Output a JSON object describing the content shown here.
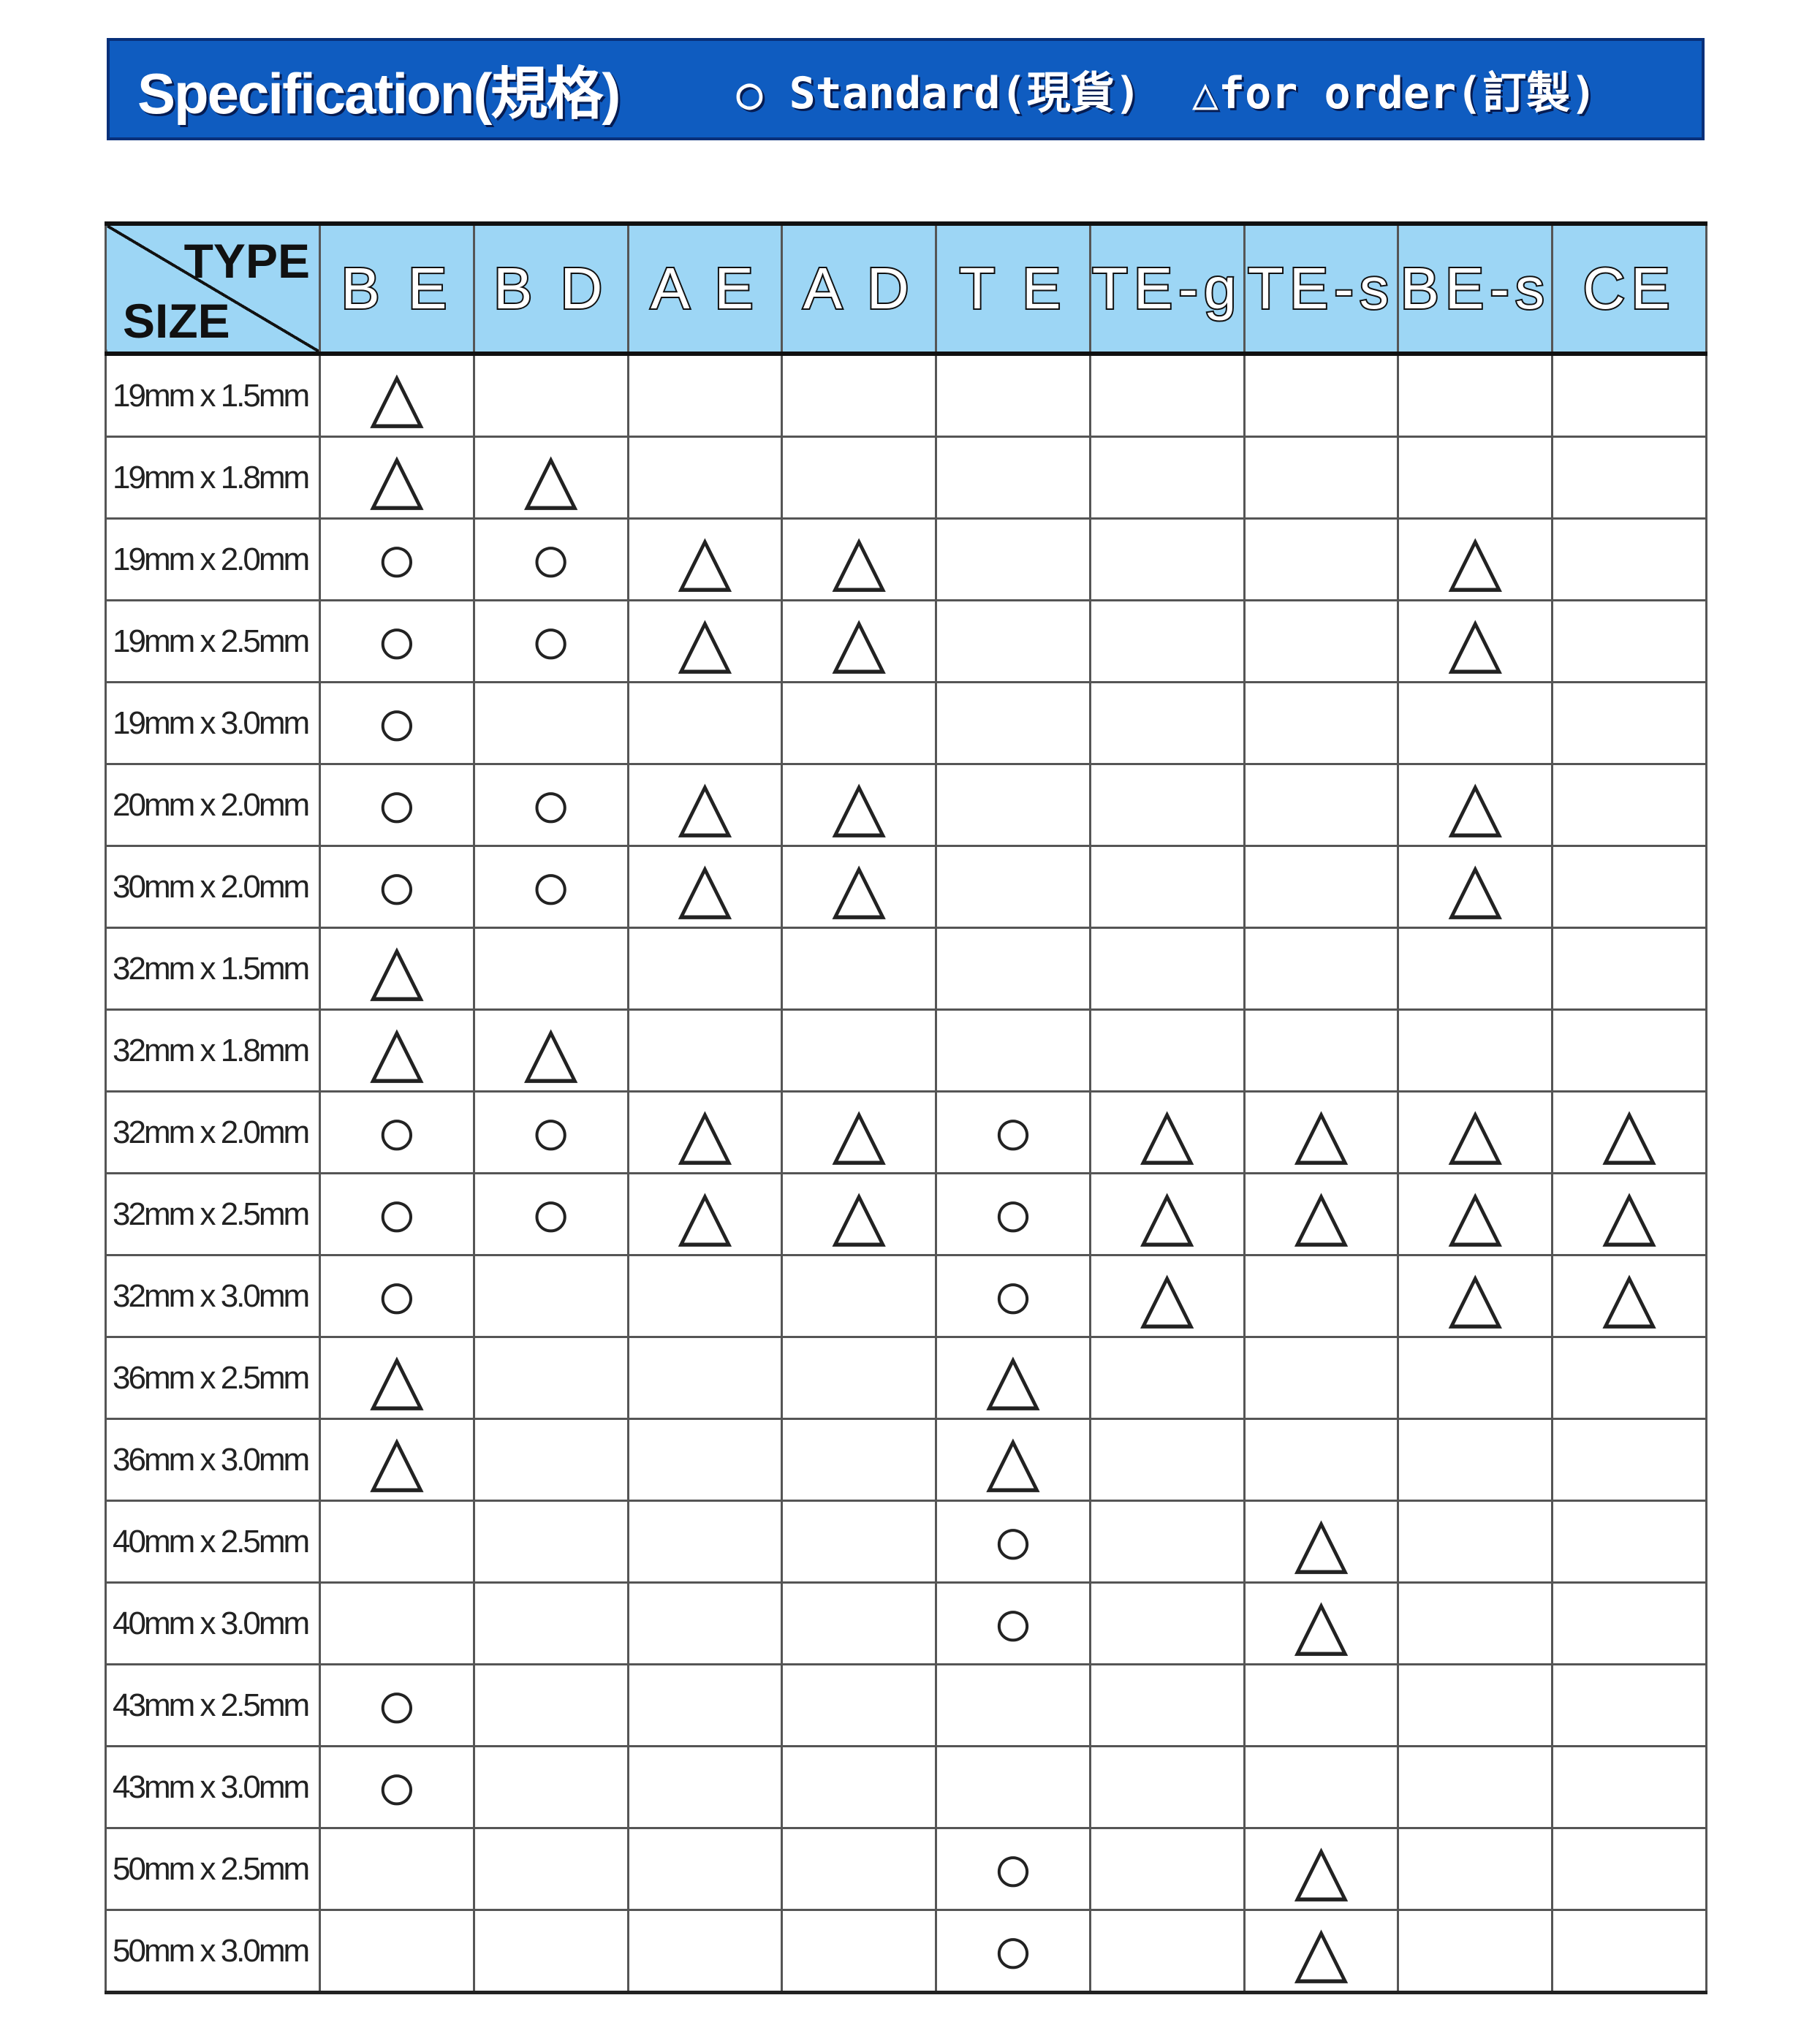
{
  "banner": {
    "title": "Specification(規格)",
    "legend_standard": "○ Standard(現貨)",
    "legend_order": "△for order(訂製)",
    "color": "#0f5cc0"
  },
  "table": {
    "corner_type": "TYPE",
    "corner_size": "SIZE",
    "header_color": "#9dd6f5",
    "columns": [
      "B E",
      "B D",
      "A E",
      "A D",
      "T E",
      "TE-g",
      "TE-s",
      "BE-s",
      "CE"
    ],
    "rows": [
      {
        "size": "19mm x 1.5mm",
        "marks": [
          "△",
          "",
          "",
          "",
          "",
          "",
          "",
          "",
          ""
        ]
      },
      {
        "size": "19mm x 1.8mm",
        "marks": [
          "△",
          "△",
          "",
          "",
          "",
          "",
          "",
          "",
          ""
        ]
      },
      {
        "size": "19mm x 2.0mm",
        "marks": [
          "○",
          "○",
          "△",
          "△",
          "",
          "",
          "",
          "△",
          ""
        ]
      },
      {
        "size": "19mm x 2.5mm",
        "marks": [
          "○",
          "○",
          "△",
          "△",
          "",
          "",
          "",
          "△",
          ""
        ]
      },
      {
        "size": "19mm x 3.0mm",
        "marks": [
          "○",
          "",
          "",
          "",
          "",
          "",
          "",
          "",
          ""
        ]
      },
      {
        "size": "20mm x 2.0mm",
        "marks": [
          "○",
          "○",
          "△",
          "△",
          "",
          "",
          "",
          "△",
          ""
        ]
      },
      {
        "size": "30mm x 2.0mm",
        "marks": [
          "○",
          "○",
          "△",
          "△",
          "",
          "",
          "",
          "△",
          ""
        ]
      },
      {
        "size": "32mm x 1.5mm",
        "marks": [
          "△",
          "",
          "",
          "",
          "",
          "",
          "",
          "",
          ""
        ]
      },
      {
        "size": "32mm x 1.8mm",
        "marks": [
          "△",
          "△",
          "",
          "",
          "",
          "",
          "",
          "",
          ""
        ]
      },
      {
        "size": "32mm x 2.0mm",
        "marks": [
          "○",
          "○",
          "△",
          "△",
          "○",
          "△",
          "△",
          "△",
          "△"
        ]
      },
      {
        "size": "32mm x 2.5mm",
        "marks": [
          "○",
          "○",
          "△",
          "△",
          "○",
          "△",
          "△",
          "△",
          "△"
        ]
      },
      {
        "size": "32mm x 3.0mm",
        "marks": [
          "○",
          "",
          "",
          "",
          "○",
          "△",
          "",
          "△",
          "△"
        ]
      },
      {
        "size": "36mm x 2.5mm",
        "marks": [
          "△",
          "",
          "",
          "",
          "△",
          "",
          "",
          "",
          ""
        ]
      },
      {
        "size": "36mm x 3.0mm",
        "marks": [
          "△",
          "",
          "",
          "",
          "△",
          "",
          "",
          "",
          ""
        ]
      },
      {
        "size": "40mm x 2.5mm",
        "marks": [
          "",
          "",
          "",
          "",
          "○",
          "",
          "△",
          "",
          ""
        ]
      },
      {
        "size": "40mm x 3.0mm",
        "marks": [
          "",
          "",
          "",
          "",
          "○",
          "",
          "△",
          "",
          ""
        ]
      },
      {
        "size": "43mm x 2.5mm",
        "marks": [
          "○",
          "",
          "",
          "",
          "",
          "",
          "",
          "",
          ""
        ]
      },
      {
        "size": "43mm x 3.0mm",
        "marks": [
          "○",
          "",
          "",
          "",
          "",
          "",
          "",
          "",
          ""
        ]
      },
      {
        "size": "50mm x 2.5mm",
        "marks": [
          "",
          "",
          "",
          "",
          "○",
          "",
          "△",
          "",
          ""
        ]
      },
      {
        "size": "50mm x 3.0mm",
        "marks": [
          "",
          "",
          "",
          "",
          "○",
          "",
          "△",
          "",
          ""
        ]
      }
    ]
  }
}
